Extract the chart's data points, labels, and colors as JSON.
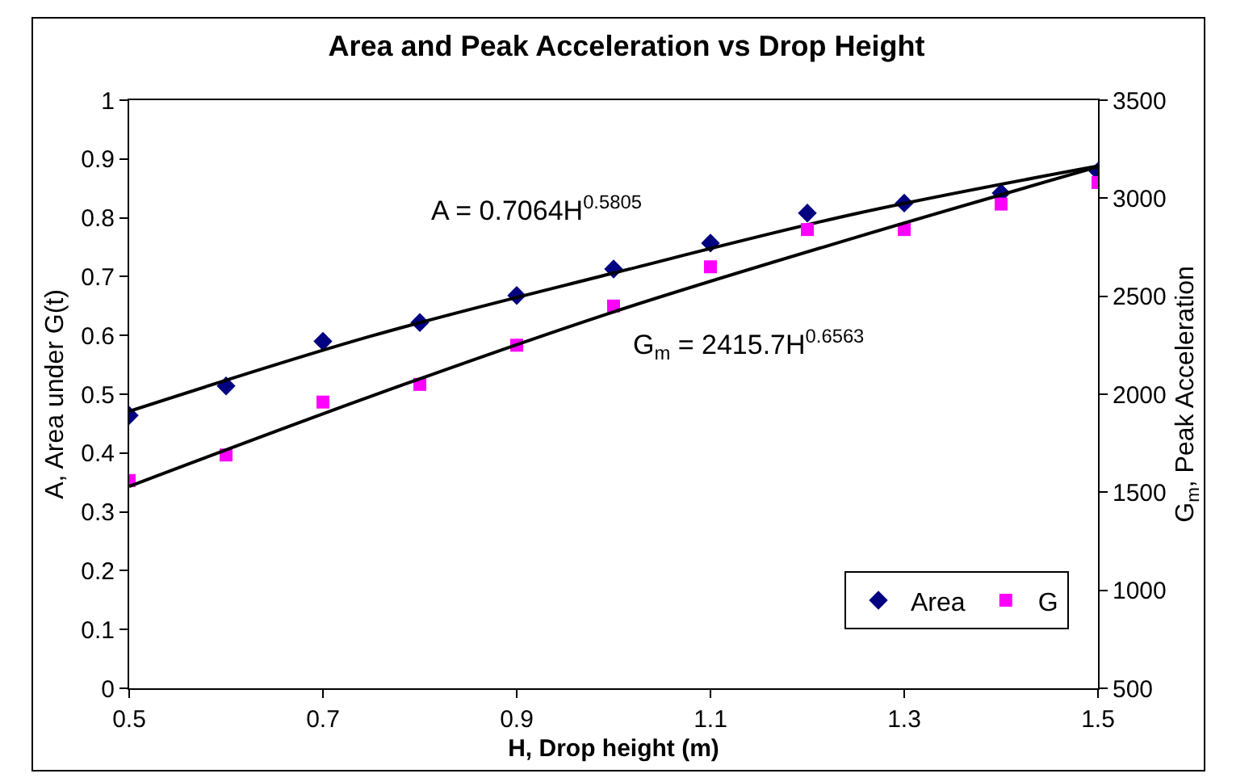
{
  "chart_data": {
    "type": "scatter",
    "title": "Area and Peak Acceleration vs Drop Height",
    "xlabel": "H, Drop height (m)",
    "ylabel": "A, Area under G(t)",
    "y2label": "G$_{m}$, Peak Acceleration",
    "x": [
      0.5,
      0.6,
      0.7,
      0.8,
      0.9,
      1.0,
      1.1,
      1.2,
      1.3,
      1.4,
      1.5
    ],
    "series": [
      {
        "name": "Area",
        "color": "#000080",
        "marker": "diamond",
        "values": [
          0.464,
          0.514,
          0.59,
          0.622,
          0.668,
          0.713,
          0.757,
          0.808,
          0.825,
          0.842,
          0.879
        ]
      },
      {
        "name": "G",
        "color": "#ff00ff",
        "marker": "square",
        "axis": "y2",
        "values": [
          1560,
          1690,
          1960,
          2050,
          2250,
          2450,
          2650,
          2840,
          2840,
          2970,
          3080
        ]
      },
      {
        "type": "line",
        "color": "#000000",
        "x": [
          0.5,
          0.75,
          1.0,
          1.25,
          1.5
        ],
        "values": [
          0.471,
          0.599,
          0.706,
          0.807,
          0.888
        ]
      },
      {
        "type": "line",
        "color": "#000000",
        "axis": "y2",
        "x": [
          0.5,
          0.75,
          1.0,
          1.25,
          1.5
        ],
        "values": [
          1530,
          1990,
          2420,
          2800,
          3160
        ]
      }
    ],
    "annotations": [
      "A = 0.7064H$^{0.5805}$",
      "G$_{m}$ = 2415.7H$^{0.6563}$"
    ],
    "xlim": [
      0.5,
      1.5
    ],
    "xticks": [
      0.5,
      0.7,
      0.9,
      1.1,
      1.3,
      1.5
    ],
    "ylim": [
      0,
      1
    ],
    "yticks": [
      0,
      0.1,
      0.2,
      0.3,
      0.4,
      0.5,
      0.6,
      0.7,
      0.8,
      0.9,
      1
    ],
    "y2lim": [
      500,
      3500
    ],
    "y2ticks": [
      500,
      1000,
      1500,
      2000,
      2500,
      3000,
      3500
    ],
    "legend": "bottom right"
  }
}
